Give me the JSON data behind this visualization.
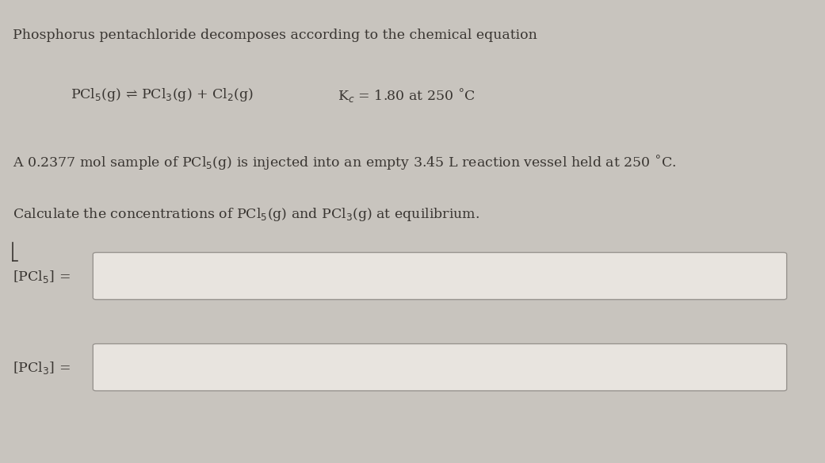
{
  "bg_color": "#c8c4be",
  "text_color": "#3a3632",
  "line1": "Phosphorus pentachloride decomposes according to the chemical equation",
  "line2_left": "PCl$_5$(g) ⇌ PCl$_3$(g) + Cl$_2$(g)",
  "line2_right": "K$_c$ = 1.80 at 250 ˚C",
  "line3": "A 0.2377 mol sample of PCl$_5$(g) is injected into an empty 3.45 L reaction vessel held at 250 ˚C.",
  "line4": "Calculate the concentrations of PCl$_5$(g) and PCl$_3$(g) at equilibrium.",
  "label1": "[PCl$_5$] =",
  "label2": "[PCl$_3$] =",
  "font_size_main": 12.5,
  "box_color": "#e8e4df",
  "box_edge_color": "#999590"
}
